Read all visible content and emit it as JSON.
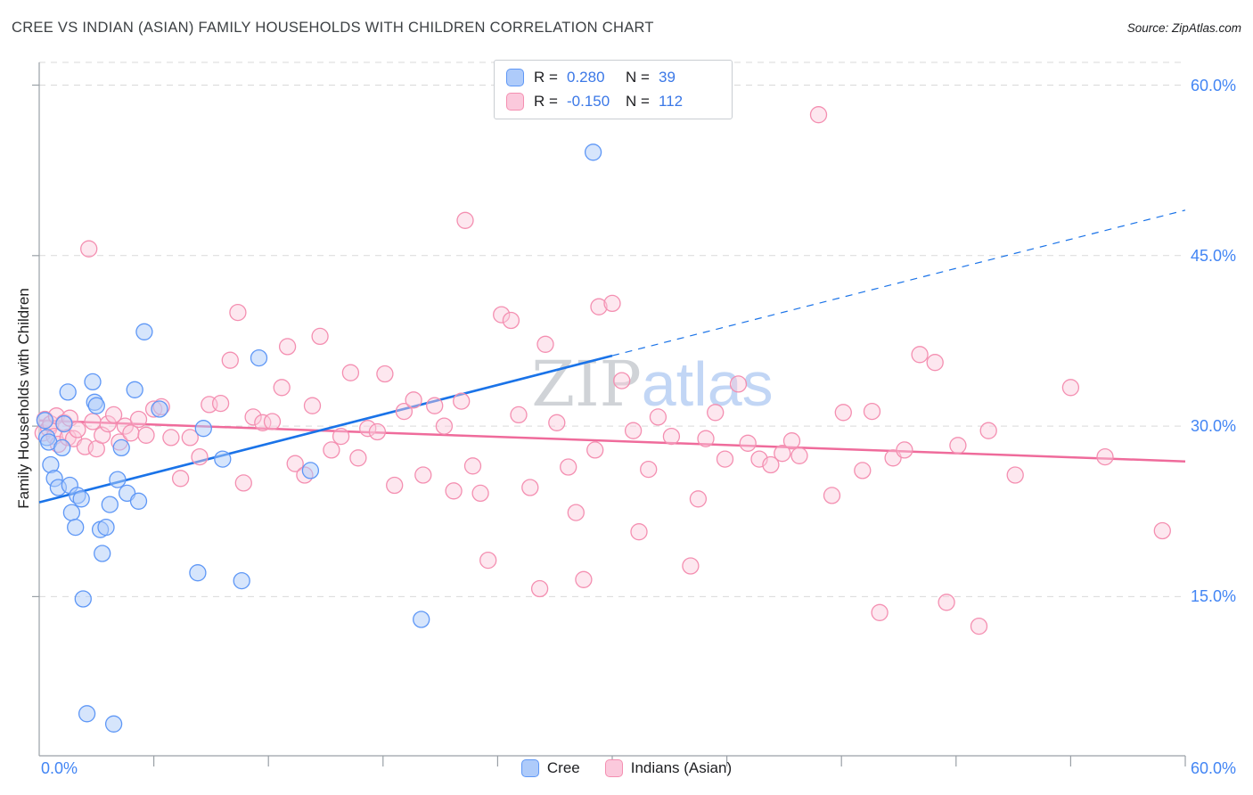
{
  "page": {
    "title": "CREE VS INDIAN (ASIAN) FAMILY HOUSEHOLDS WITH CHILDREN CORRELATION CHART",
    "source": "Source: ZipAtlas.com"
  },
  "colors": {
    "axis_label_blue": "#4285f4",
    "grid": "#d9d9d9",
    "axis": "#9aa0a6",
    "cree_fill": "#aecbfa",
    "cree_stroke": "#5e97f6",
    "cree_trend": "#1a73e8",
    "indian_fill": "#fbc9dc",
    "indian_stroke": "#f48fb1",
    "indian_trend": "#ef6b9b",
    "legend_value_blue": "#3b78e7"
  },
  "legend_box": {
    "rows": [
      {
        "r_label": "R =",
        "r_value": "0.280",
        "n_label": "N =",
        "n_value": "39"
      },
      {
        "r_label": "R =",
        "r_value": "-0.150",
        "n_label": "N =",
        "n_value": "112"
      }
    ]
  },
  "bottom_legend": {
    "items": [
      {
        "label": "Cree"
      },
      {
        "label": "Indians (Asian)"
      }
    ]
  },
  "watermark": {
    "zip": "ZIP",
    "atlas": "atlas"
  },
  "chart_data": {
    "type": "scatter",
    "title": "CREE VS INDIAN (ASIAN) FAMILY HOUSEHOLDS WITH CHILDREN CORRELATION CHART",
    "xlabel": "",
    "ylabel": "Family Households with Children",
    "units": "percent",
    "xlim": [
      0,
      60
    ],
    "ylim": [
      1,
      62
    ],
    "x_axis_labels": [
      "0.0%",
      "60.0%"
    ],
    "y_axis_labels": [
      "60.0%",
      "45.0%",
      "30.0%",
      "15.0%"
    ],
    "y_grid_values": [
      60,
      45,
      30,
      15
    ],
    "x_tick_values": [
      6,
      12,
      18,
      24,
      30,
      36,
      42,
      48,
      54,
      60
    ],
    "grid": "dashed-horizontal",
    "legend_position": "bottom-center",
    "series": [
      {
        "name": "Cree",
        "R": 0.28,
        "N": 39,
        "points": [
          [
            0.3,
            30.5
          ],
          [
            0.4,
            29.0
          ],
          [
            0.5,
            28.6
          ],
          [
            0.6,
            26.6
          ],
          [
            0.8,
            25.4
          ],
          [
            1.0,
            24.6
          ],
          [
            1.2,
            28.1
          ],
          [
            1.3,
            30.2
          ],
          [
            1.5,
            33.0
          ],
          [
            1.6,
            24.8
          ],
          [
            1.7,
            22.4
          ],
          [
            1.9,
            21.1
          ],
          [
            2.0,
            23.9
          ],
          [
            2.2,
            23.6
          ],
          [
            2.3,
            14.8
          ],
          [
            2.5,
            4.7
          ],
          [
            2.8,
            33.9
          ],
          [
            2.9,
            32.1
          ],
          [
            3.0,
            31.8
          ],
          [
            3.2,
            20.9
          ],
          [
            3.3,
            18.8
          ],
          [
            3.5,
            21.1
          ],
          [
            3.7,
            23.1
          ],
          [
            3.9,
            3.8
          ],
          [
            4.1,
            25.3
          ],
          [
            4.3,
            28.1
          ],
          [
            4.6,
            24.1
          ],
          [
            5.0,
            33.2
          ],
          [
            5.2,
            23.4
          ],
          [
            5.5,
            38.3
          ],
          [
            6.3,
            31.5
          ],
          [
            8.3,
            17.1
          ],
          [
            8.6,
            29.8
          ],
          [
            9.6,
            27.1
          ],
          [
            10.6,
            16.4
          ],
          [
            11.5,
            36.0
          ],
          [
            14.2,
            26.1
          ],
          [
            20.0,
            13.0
          ],
          [
            29.0,
            54.1
          ]
        ]
      },
      {
        "name": "Indians (Asian)",
        "R": -0.15,
        "N": 112,
        "points": [
          [
            0.2,
            29.4
          ],
          [
            0.3,
            30.6
          ],
          [
            0.5,
            29.8
          ],
          [
            0.6,
            30.2
          ],
          [
            0.8,
            29.1
          ],
          [
            0.9,
            30.9
          ],
          [
            1.0,
            28.4
          ],
          [
            1.3,
            30.3
          ],
          [
            1.5,
            29.0
          ],
          [
            1.6,
            30.7
          ],
          [
            1.8,
            28.9
          ],
          [
            2.0,
            29.7
          ],
          [
            2.4,
            28.2
          ],
          [
            2.6,
            45.6
          ],
          [
            2.8,
            30.4
          ],
          [
            3.0,
            28.0
          ],
          [
            3.3,
            29.2
          ],
          [
            3.6,
            30.2
          ],
          [
            3.9,
            31.0
          ],
          [
            4.2,
            28.6
          ],
          [
            4.5,
            30.0
          ],
          [
            4.8,
            29.4
          ],
          [
            5.2,
            30.6
          ],
          [
            5.6,
            29.2
          ],
          [
            6.0,
            31.5
          ],
          [
            6.4,
            31.7
          ],
          [
            6.9,
            29.0
          ],
          [
            7.4,
            25.4
          ],
          [
            7.9,
            29.0
          ],
          [
            8.4,
            27.3
          ],
          [
            8.9,
            31.9
          ],
          [
            9.5,
            32.0
          ],
          [
            10.0,
            35.8
          ],
          [
            10.4,
            40.0
          ],
          [
            10.7,
            25.0
          ],
          [
            11.2,
            30.8
          ],
          [
            11.7,
            30.3
          ],
          [
            12.2,
            30.4
          ],
          [
            12.7,
            33.4
          ],
          [
            13.0,
            37.0
          ],
          [
            13.4,
            26.7
          ],
          [
            13.9,
            25.7
          ],
          [
            14.3,
            31.8
          ],
          [
            14.7,
            37.9
          ],
          [
            15.3,
            27.9
          ],
          [
            15.8,
            29.1
          ],
          [
            16.3,
            34.7
          ],
          [
            16.7,
            27.2
          ],
          [
            17.2,
            29.8
          ],
          [
            17.7,
            29.5
          ],
          [
            18.1,
            34.6
          ],
          [
            18.6,
            24.8
          ],
          [
            19.1,
            31.3
          ],
          [
            19.6,
            32.3
          ],
          [
            20.1,
            25.7
          ],
          [
            20.7,
            31.8
          ],
          [
            21.2,
            30.0
          ],
          [
            21.7,
            24.3
          ],
          [
            22.1,
            32.2
          ],
          [
            22.3,
            48.1
          ],
          [
            22.7,
            26.5
          ],
          [
            23.1,
            24.1
          ],
          [
            23.5,
            18.2
          ],
          [
            24.2,
            39.8
          ],
          [
            24.7,
            39.3
          ],
          [
            25.1,
            31.0
          ],
          [
            25.7,
            24.6
          ],
          [
            26.2,
            15.7
          ],
          [
            26.5,
            37.2
          ],
          [
            27.1,
            30.3
          ],
          [
            27.7,
            26.4
          ],
          [
            28.1,
            22.4
          ],
          [
            28.5,
            16.5
          ],
          [
            29.1,
            27.9
          ],
          [
            29.3,
            40.5
          ],
          [
            30.0,
            40.8
          ],
          [
            30.5,
            34.0
          ],
          [
            31.1,
            29.6
          ],
          [
            31.4,
            20.7
          ],
          [
            31.9,
            26.2
          ],
          [
            32.4,
            30.8
          ],
          [
            33.1,
            29.1
          ],
          [
            34.1,
            17.7
          ],
          [
            34.5,
            23.6
          ],
          [
            34.9,
            28.9
          ],
          [
            35.4,
            31.2
          ],
          [
            35.9,
            27.1
          ],
          [
            36.6,
            33.7
          ],
          [
            37.1,
            28.5
          ],
          [
            37.7,
            27.1
          ],
          [
            38.3,
            26.6
          ],
          [
            38.9,
            27.6
          ],
          [
            39.4,
            28.7
          ],
          [
            39.8,
            27.4
          ],
          [
            40.8,
            57.4
          ],
          [
            41.5,
            23.9
          ],
          [
            42.1,
            31.2
          ],
          [
            43.1,
            26.1
          ],
          [
            43.6,
            31.3
          ],
          [
            44.0,
            13.6
          ],
          [
            44.7,
            27.2
          ],
          [
            45.3,
            27.9
          ],
          [
            46.1,
            36.3
          ],
          [
            46.9,
            35.6
          ],
          [
            47.5,
            14.5
          ],
          [
            48.1,
            28.3
          ],
          [
            49.2,
            12.4
          ],
          [
            49.7,
            29.6
          ],
          [
            51.1,
            25.7
          ],
          [
            54.0,
            33.4
          ],
          [
            55.8,
            27.3
          ],
          [
            58.8,
            20.8
          ]
        ]
      }
    ],
    "trend_lines": [
      {
        "name": "Cree",
        "start": [
          0,
          23.3
        ],
        "end": [
          30,
          36.2
        ],
        "extrapolated_end": [
          60,
          49.0
        ]
      },
      {
        "name": "Indians (Asian)",
        "start": [
          0,
          30.5
        ],
        "end": [
          60,
          26.9
        ]
      }
    ]
  }
}
